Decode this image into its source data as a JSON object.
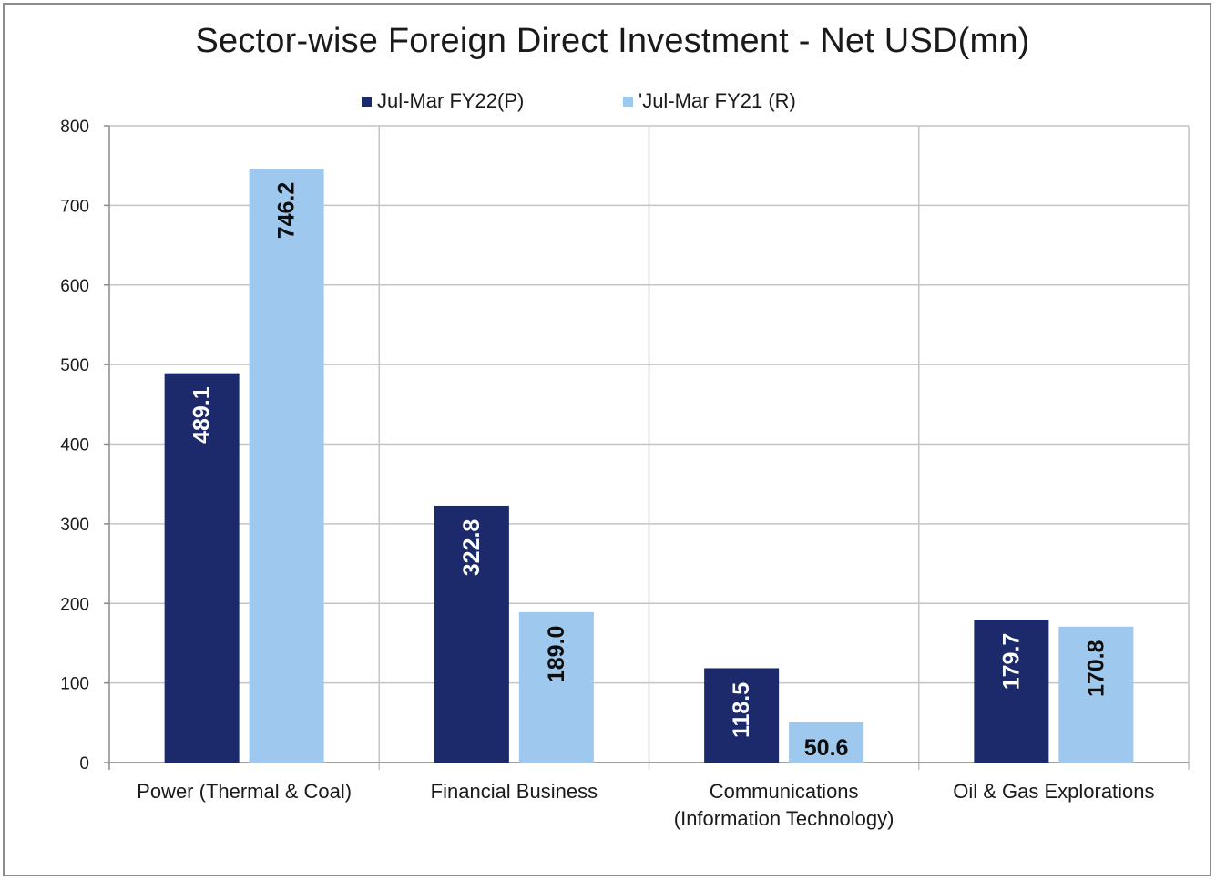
{
  "chart_data": {
    "type": "bar",
    "title": "Sector-wise Foreign Direct Investment - Net USD(mn)",
    "categories": [
      [
        "Power (Thermal & Coal)"
      ],
      [
        "Financial Business"
      ],
      [
        "Communications",
        "(Information Technology)"
      ],
      [
        "Oil & Gas Explorations"
      ]
    ],
    "series": [
      {
        "name": "Jul-Mar FY22(P)",
        "values": [
          489.1,
          322.8,
          118.5,
          179.7
        ],
        "labels": [
          "489.1",
          "322.8",
          "118.5",
          "179.7"
        ],
        "color": "#1c2a6b",
        "label_color": "#ffffff"
      },
      {
        "name": "'Jul-Mar FY21 (R)",
        "values": [
          746.2,
          189.0,
          50.6,
          170.8
        ],
        "labels": [
          "746.2",
          "189.0",
          "50.6",
          "170.8"
        ],
        "color": "#9fc8ee",
        "label_color": "#0d0d0d"
      }
    ],
    "ylim": [
      0,
      800
    ],
    "yticks": [
      0,
      100,
      200,
      300,
      400,
      500,
      600,
      700,
      800
    ],
    "grid": true,
    "legend_position": "top"
  }
}
